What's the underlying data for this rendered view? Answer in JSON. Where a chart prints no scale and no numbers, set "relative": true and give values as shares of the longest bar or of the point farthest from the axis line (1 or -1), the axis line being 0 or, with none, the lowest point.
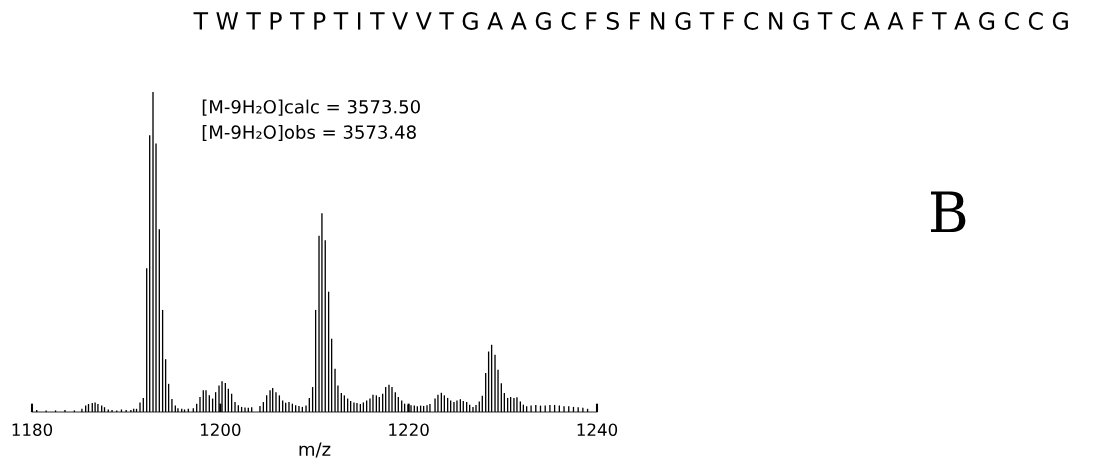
{
  "chart_data": {
    "type": "bar",
    "title": "T W T P T P T I T V V T G A A G C F S F N G T F C N G T C A A F T A G C C G",
    "xlabel": "m/z",
    "annotations": [
      "[M-9H₂O]calc = 3573.50",
      "[M-9H₂O]obs = 3573.48",
      "B"
    ],
    "relative": true,
    "xlim": [
      1180,
      1240
    ],
    "xticks": [
      1180,
      1200,
      1220,
      1240
    ],
    "grid": false,
    "legend": false,
    "color": "#000000",
    "x": [
      1180.5,
      1181.5,
      1182.5,
      1183.5,
      1184.5,
      1185.3,
      1185.7,
      1186.0,
      1186.4,
      1186.7,
      1187.0,
      1187.4,
      1187.7,
      1188.1,
      1188.5,
      1189.0,
      1189.5,
      1190.0,
      1190.5,
      1190.8,
      1191.1,
      1191.47,
      1191.82,
      1192.18,
      1192.5,
      1192.85,
      1193.17,
      1193.52,
      1193.87,
      1194.19,
      1194.51,
      1194.86,
      1195.22,
      1195.5,
      1195.9,
      1196.2,
      1196.6,
      1197.13,
      1197.49,
      1197.84,
      1198.19,
      1198.48,
      1198.83,
      1199.18,
      1199.5,
      1199.86,
      1200.18,
      1200.53,
      1200.85,
      1201.2,
      1201.56,
      1201.91,
      1202.26,
      1202.62,
      1202.97,
      1203.33,
      1204.21,
      1204.57,
      1204.92,
      1205.28,
      1205.56,
      1205.91,
      1206.27,
      1206.62,
      1206.94,
      1207.29,
      1207.65,
      1208.0,
      1208.35,
      1208.71,
      1209.1,
      1209.45,
      1209.8,
      1210.12,
      1210.48,
      1210.79,
      1211.14,
      1211.5,
      1211.82,
      1212.18,
      1212.49,
      1212.85,
      1213.17,
      1213.52,
      1213.84,
      1214.19,
      1214.51,
      1214.87,
      1215.19,
      1215.54,
      1215.89,
      1216.21,
      1216.57,
      1216.88,
      1217.24,
      1217.56,
      1217.91,
      1218.23,
      1218.58,
      1218.9,
      1219.26,
      1219.57,
      1219.93,
      1220.25,
      1220.6,
      1220.92,
      1221.27,
      1221.59,
      1221.95,
      1222.26,
      1222.8,
      1223.11,
      1223.47,
      1223.79,
      1224.14,
      1224.46,
      1224.81,
      1225.13,
      1225.49,
      1225.8,
      1226.16,
      1226.48,
      1226.83,
      1227.15,
      1227.5,
      1227.82,
      1228.18,
      1228.49,
      1228.81,
      1229.17,
      1229.49,
      1229.84,
      1230.16,
      1230.51,
      1230.83,
      1231.18,
      1231.5,
      1231.86,
      1232.18,
      1232.53,
      1233.0,
      1233.5,
      1234.0,
      1234.5,
      1235.0,
      1235.5,
      1236.0,
      1236.5,
      1237.0,
      1237.5,
      1238.0,
      1238.5,
      1239.0
    ],
    "values": [
      0.006,
      0.005,
      0.005,
      0.006,
      0.005,
      0.01,
      0.02,
      0.025,
      0.028,
      0.03,
      0.025,
      0.02,
      0.015,
      0.008,
      0.006,
      0.005,
      0.008,
      0.006,
      0.006,
      0.01,
      0.01,
      0.03,
      0.044,
      0.449,
      0.865,
      1,
      0.839,
      0.571,
      0.319,
      0.165,
      0.088,
      0.041,
      0.02,
      0.012,
      0.01,
      0.008,
      0.01,
      0.012,
      0.026,
      0.047,
      0.068,
      0.068,
      0.052,
      0.042,
      0.062,
      0.083,
      0.096,
      0.091,
      0.073,
      0.057,
      0.031,
      0.021,
      0.016,
      0.014,
      0.013,
      0.015,
      0.019,
      0.031,
      0.052,
      0.068,
      0.075,
      0.062,
      0.052,
      0.036,
      0.029,
      0.031,
      0.026,
      0.021,
      0.019,
      0.016,
      0.02,
      0.044,
      0.078,
      0.319,
      0.551,
      0.621,
      0.537,
      0.376,
      0.229,
      0.135,
      0.083,
      0.059,
      0.052,
      0.042,
      0.034,
      0.03,
      0.028,
      0.025,
      0.03,
      0.036,
      0.042,
      0.054,
      0.052,
      0.047,
      0.057,
      0.078,
      0.085,
      0.078,
      0.062,
      0.047,
      0.036,
      0.026,
      0.023,
      0.021,
      0.02,
      0.018,
      0.02,
      0.019,
      0.021,
      0.025,
      0.042,
      0.054,
      0.06,
      0.052,
      0.044,
      0.036,
      0.031,
      0.036,
      0.04,
      0.034,
      0.031,
      0.023,
      0.016,
      0.022,
      0.033,
      0.051,
      0.122,
      0.189,
      0.21,
      0.179,
      0.132,
      0.09,
      0.059,
      0.044,
      0.047,
      0.044,
      0.046,
      0.033,
      0.023,
      0.018,
      0.02,
      0.022,
      0.02,
      0.02,
      0.022,
      0.022,
      0.02,
      0.018,
      0.018,
      0.016,
      0.015,
      0.013,
      0.01
    ]
  }
}
